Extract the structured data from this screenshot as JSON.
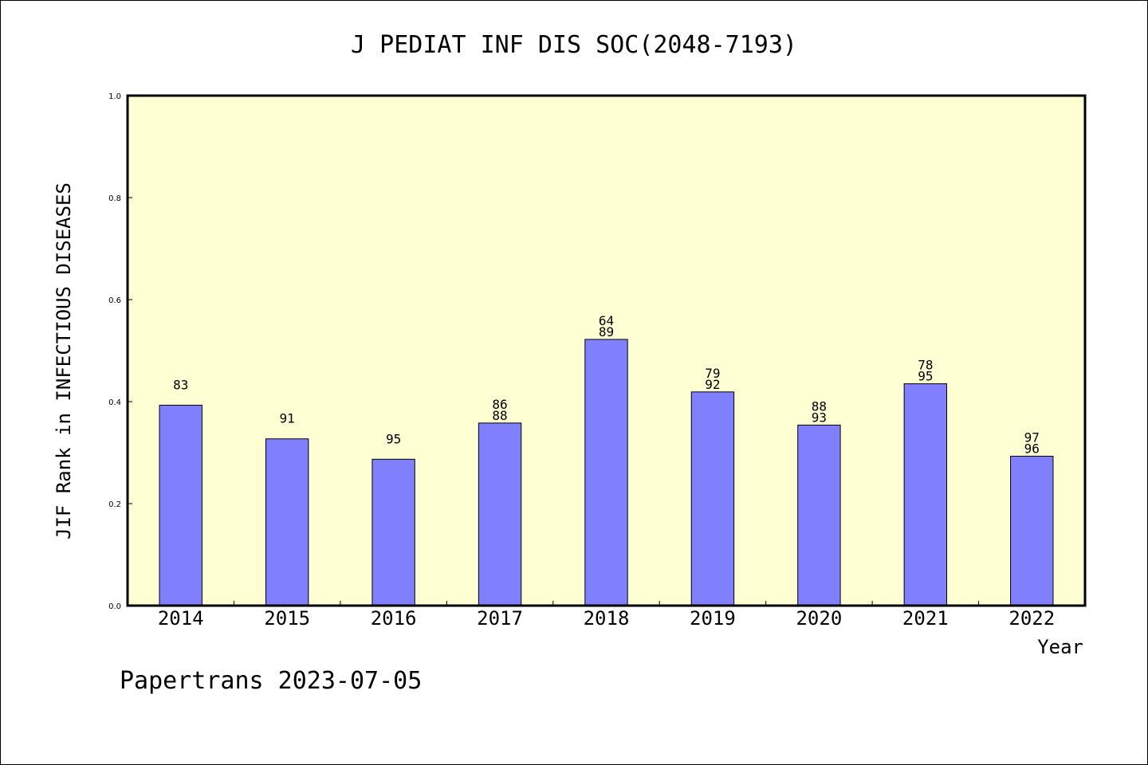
{
  "chart_data": {
    "type": "bar",
    "title": "J PEDIAT INF DIS SOC(2048-7193)",
    "ylabel": "JIF Rank in INFECTIOUS DISEASES",
    "xlabel": "Year",
    "categories": [
      "2014",
      "2015",
      "2016",
      "2017",
      "2018",
      "2019",
      "2020",
      "2021",
      "2022"
    ],
    "values": [
      0.393,
      0.327,
      0.287,
      0.358,
      0.522,
      0.419,
      0.354,
      0.435,
      0.293
    ],
    "bar_labels": [
      [
        "83"
      ],
      [
        "91"
      ],
      [
        "95"
      ],
      [
        "86",
        "88"
      ],
      [
        "64",
        "89"
      ],
      [
        "79",
        "92"
      ],
      [
        "88",
        "93"
      ],
      [
        "78",
        "95"
      ],
      [
        "97",
        "96"
      ]
    ],
    "ylim": [
      0,
      1.0
    ],
    "yticks": [
      "0.0",
      "0.2",
      "0.4",
      "0.6",
      "0.8",
      "1.0"
    ],
    "grid": false,
    "colors": {
      "plot_background": "#ffffd4",
      "bar_fill": "#8080ff",
      "bar_stroke": "#000000"
    }
  },
  "footer": "Papertrans 2023-07-05"
}
